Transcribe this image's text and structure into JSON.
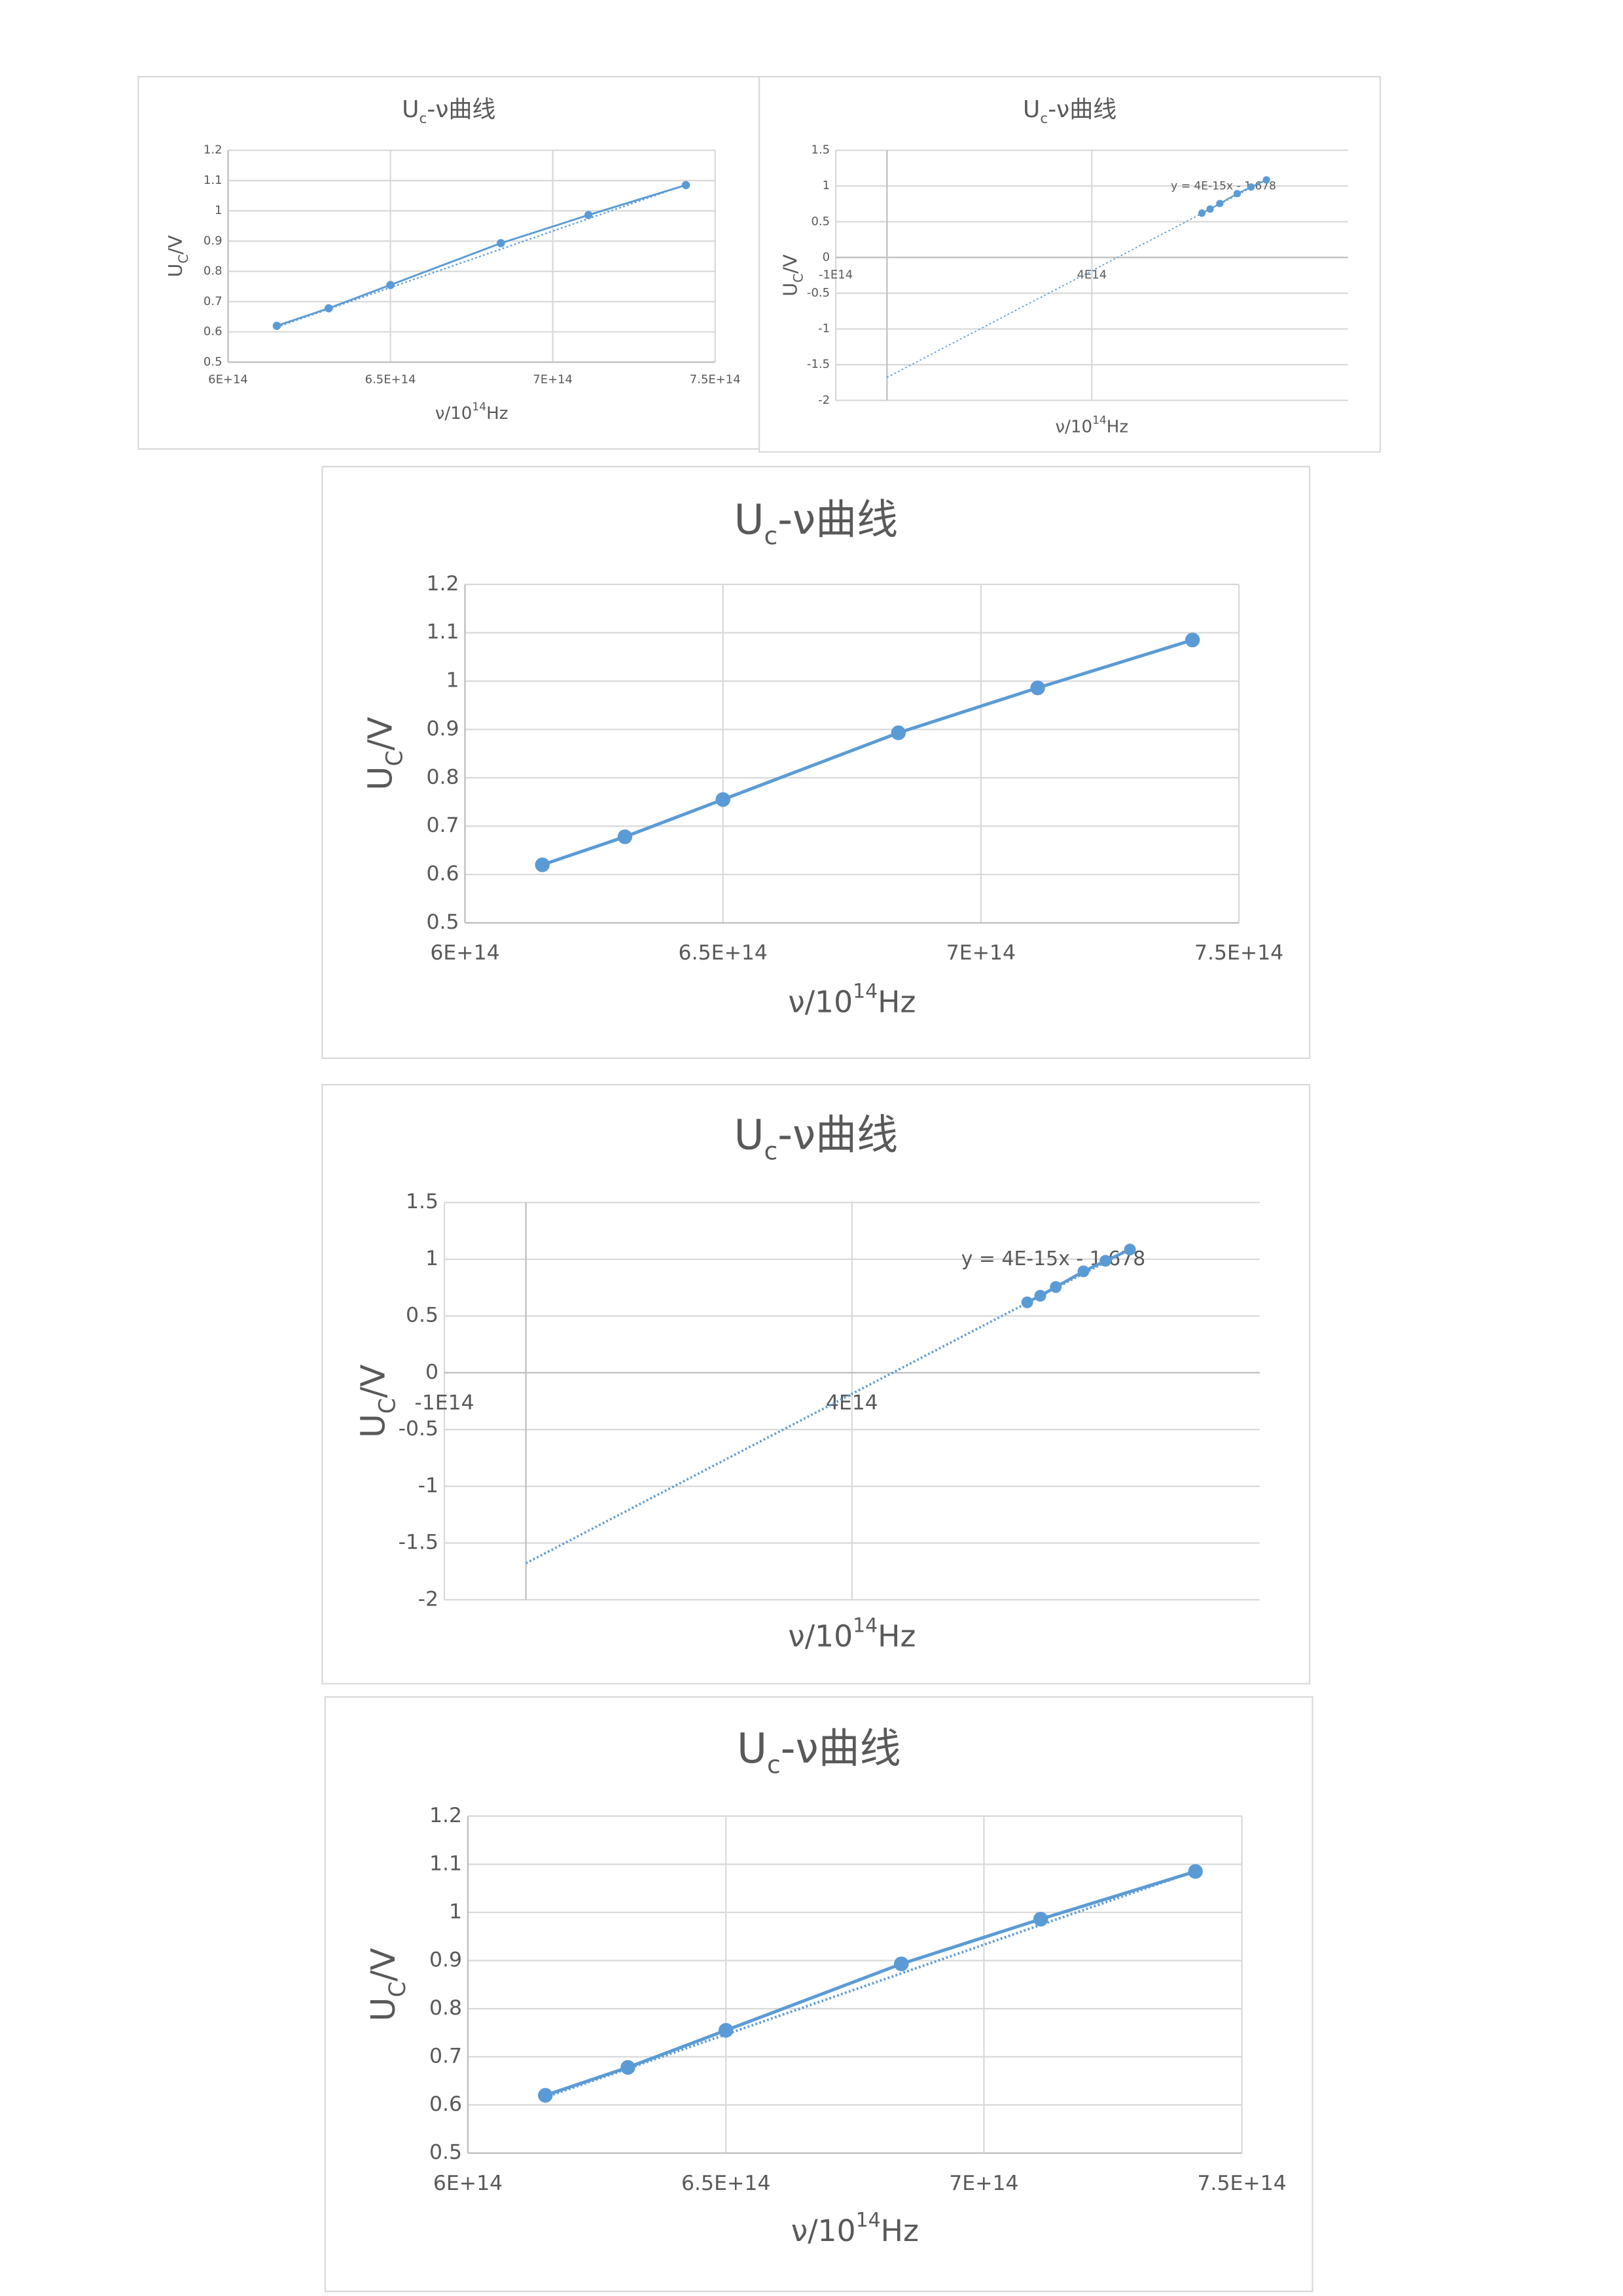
{
  "chart_data": [
    {
      "type": "line",
      "title": [
        "U",
        "c",
        "-ν曲线"
      ],
      "x_label": [
        "ν/10",
        "14",
        "Hz"
      ],
      "y_label": [
        "U",
        "C",
        "/V"
      ],
      "x": [
        615000000000000.0,
        631000000000000.0,
        650000000000000.0,
        684000000000000.0,
        711000000000000.0,
        741000000000000.0
      ],
      "series": [
        {
          "color": "#5b9bd5",
          "values": [
            0.62,
            0.678,
            0.755,
            0.893,
            0.986,
            1.085
          ]
        }
      ],
      "trendline": {
        "slope": 3.73e-15,
        "intercept": -1.678,
        "x_range": [
          615000000000000.0,
          741000000000000.0
        ]
      },
      "xlim": [
        600000000000000.0,
        750000000000000.0
      ],
      "xticks": [
        {
          "value": 600000000000000.0,
          "label": "6E+14"
        },
        {
          "value": 650000000000000.0,
          "label": "6.5E+14"
        },
        {
          "value": 700000000000000.0,
          "label": "7E+14"
        },
        {
          "value": 750000000000000.0,
          "label": "7.5E+14"
        }
      ],
      "ylim": [
        0.5,
        1.2
      ],
      "yticks": [
        0.5,
        0.6,
        0.7,
        0.8,
        0.9,
        1,
        1.1,
        1.2
      ],
      "grid": true
    },
    {
      "type": "line",
      "title": [
        "U",
        "c",
        "-ν曲线"
      ],
      "x_label": [
        "ν/10",
        "14",
        "Hz"
      ],
      "y_label": [
        "U",
        "C",
        "/V"
      ],
      "x": [
        615000000000000.0,
        631000000000000.0,
        650000000000000.0,
        684000000000000.0,
        711000000000000.0,
        741000000000000.0
      ],
      "series": [
        {
          "color": "#5b9bd5",
          "values": [
            0.62,
            0.678,
            0.755,
            0.893,
            0.986,
            1.085
          ]
        }
      ],
      "trendline": {
        "slope": 3.73e-15,
        "intercept": -1.678,
        "x_range": [
          0,
          741000000000000.0
        ],
        "label": "y = 4E-15x - 1.678"
      },
      "xlim": [
        -100000000000000.0,
        900000000000000.0
      ],
      "xticks": [
        {
          "value": -100000000000000.0,
          "label": "-1E14"
        },
        {
          "value": 400000000000000.0,
          "label": "4E14"
        }
      ],
      "ylim": [
        -2,
        1.5
      ],
      "yticks": [
        -2,
        -1.5,
        -1,
        -0.5,
        0,
        0.5,
        1,
        1.5
      ],
      "grid": true
    },
    {
      "type": "line",
      "title": [
        "U",
        "c",
        "-ν曲线"
      ],
      "x_label": [
        "ν/10",
        "14",
        "Hz"
      ],
      "y_label": [
        "U",
        "C",
        "/V"
      ],
      "x": [
        615000000000000.0,
        631000000000000.0,
        650000000000000.0,
        684000000000000.0,
        711000000000000.0,
        741000000000000.0
      ],
      "series": [
        {
          "color": "#5b9bd5",
          "values": [
            0.62,
            0.678,
            0.755,
            0.893,
            0.986,
            1.085
          ]
        }
      ],
      "xlim": [
        600000000000000.0,
        750000000000000.0
      ],
      "xticks": [
        {
          "value": 600000000000000.0,
          "label": "6E+14"
        },
        {
          "value": 650000000000000.0,
          "label": "6.5E+14"
        },
        {
          "value": 700000000000000.0,
          "label": "7E+14"
        },
        {
          "value": 750000000000000.0,
          "label": "7.5E+14"
        }
      ],
      "ylim": [
        0.5,
        1.2
      ],
      "yticks": [
        0.5,
        0.6,
        0.7,
        0.8,
        0.9,
        1,
        1.1,
        1.2
      ],
      "grid": true
    },
    {
      "type": "line",
      "title": [
        "U",
        "c",
        "-ν曲线"
      ],
      "x_label": [
        "ν/10",
        "14",
        "Hz"
      ],
      "y_label": [
        "U",
        "C",
        "/V"
      ],
      "x": [
        615000000000000.0,
        631000000000000.0,
        650000000000000.0,
        684000000000000.0,
        711000000000000.0,
        741000000000000.0
      ],
      "series": [
        {
          "color": "#5b9bd5",
          "values": [
            0.62,
            0.678,
            0.755,
            0.893,
            0.986,
            1.085
          ]
        }
      ],
      "trendline": {
        "slope": 3.73e-15,
        "intercept": -1.678,
        "x_range": [
          0,
          741000000000000.0
        ],
        "label": "y = 4E-15x - 1.678"
      },
      "xlim": [
        -100000000000000.0,
        900000000000000.0
      ],
      "xticks": [
        {
          "value": -100000000000000.0,
          "label": "-1E14"
        },
        {
          "value": 400000000000000.0,
          "label": "4E14"
        }
      ],
      "ylim": [
        -2,
        1.5
      ],
      "yticks": [
        -2,
        -1.5,
        -1,
        -0.5,
        0,
        0.5,
        1,
        1.5
      ],
      "grid": true
    },
    {
      "type": "line",
      "title": [
        "U",
        "c",
        "-ν曲线"
      ],
      "x_label": [
        "ν/10",
        "14",
        "Hz"
      ],
      "y_label": [
        "U",
        "C",
        "/V"
      ],
      "x": [
        615000000000000.0,
        631000000000000.0,
        650000000000000.0,
        684000000000000.0,
        711000000000000.0,
        741000000000000.0
      ],
      "series": [
        {
          "color": "#5b9bd5",
          "values": [
            0.62,
            0.678,
            0.755,
            0.893,
            0.986,
            1.085
          ]
        }
      ],
      "trendline": {
        "slope": 3.73e-15,
        "intercept": -1.678,
        "x_range": [
          615000000000000.0,
          741000000000000.0
        ]
      },
      "xlim": [
        600000000000000.0,
        750000000000000.0
      ],
      "xticks": [
        {
          "value": 600000000000000.0,
          "label": "6E+14"
        },
        {
          "value": 650000000000000.0,
          "label": "6.5E+14"
        },
        {
          "value": 700000000000000.0,
          "label": "7E+14"
        },
        {
          "value": 750000000000000.0,
          "label": "7.5E+14"
        }
      ],
      "ylim": [
        0.5,
        1.2
      ],
      "yticks": [
        0.5,
        0.6,
        0.7,
        0.8,
        0.9,
        1,
        1.1,
        1.2
      ],
      "grid": true
    }
  ]
}
